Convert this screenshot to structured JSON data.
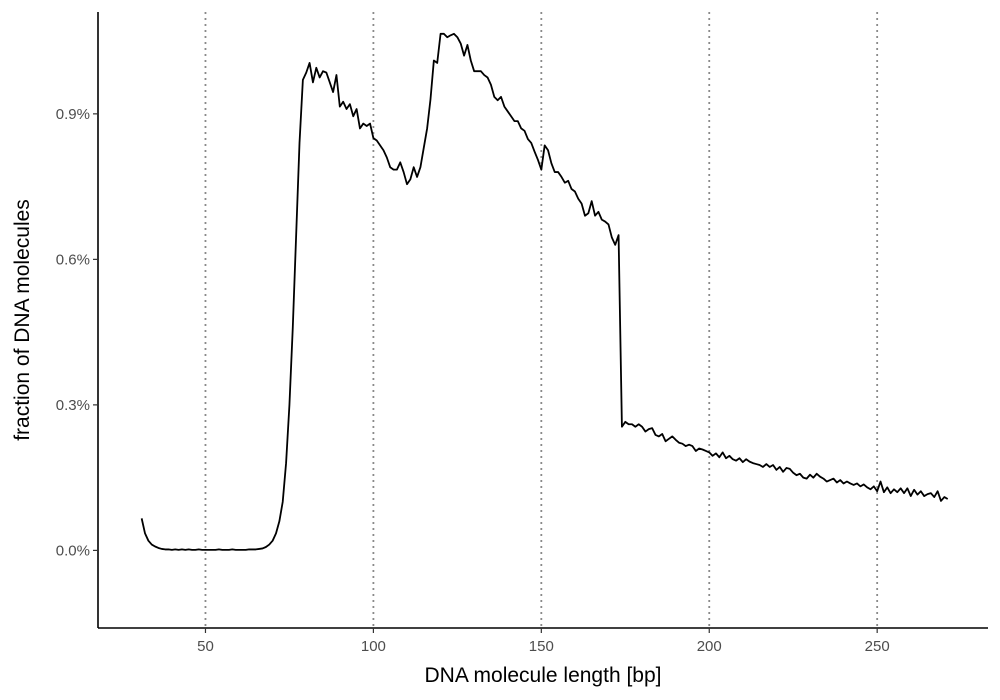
{
  "chart_data": {
    "type": "line",
    "xlabel": "DNA molecule length [bp]",
    "ylabel": "fraction of DNA molecules",
    "xlim": [
      18,
      283
    ],
    "ylim": [
      -0.16,
      1.11
    ],
    "x_ticks": [
      50,
      100,
      150,
      200,
      250
    ],
    "x_tick_labels": [
      "50",
      "100",
      "150",
      "200",
      "250"
    ],
    "y_ticks": [
      0.0,
      0.3,
      0.6,
      0.9
    ],
    "y_tick_labels": [
      "0.0%",
      "0.3%",
      "0.6%",
      "0.9%"
    ],
    "y_unit": "%",
    "vertical_reference_lines": [
      50,
      100,
      150,
      200,
      250
    ],
    "grid": false,
    "series": [
      {
        "x": [
          31,
          32,
          33,
          34,
          35,
          36,
          37,
          38,
          39,
          40,
          41,
          42,
          43,
          44,
          45,
          46,
          47,
          48,
          49,
          50,
          51,
          52,
          53,
          54,
          55,
          56,
          57,
          58,
          59,
          60,
          61,
          62,
          63,
          64,
          65,
          66,
          67,
          68,
          69,
          70,
          71,
          72,
          73,
          74,
          75,
          76,
          77,
          78,
          79,
          80,
          81,
          82,
          83,
          84,
          85,
          86,
          87,
          88,
          89,
          90,
          91,
          92,
          93,
          94,
          95,
          96,
          97,
          98,
          99,
          100,
          101,
          102,
          103,
          104,
          105,
          106,
          107,
          108,
          109,
          110,
          111,
          112,
          113,
          114,
          115,
          116,
          117,
          118,
          119,
          120,
          121,
          122,
          123,
          124,
          125,
          126,
          127,
          128,
          129,
          130,
          131,
          132,
          133,
          134,
          135,
          136,
          137,
          138,
          139,
          140,
          141,
          142,
          143,
          144,
          145,
          146,
          147,
          148,
          149,
          150,
          151,
          152,
          153,
          154,
          155,
          156,
          157,
          158,
          159,
          160,
          161,
          162,
          163,
          164,
          165,
          166,
          167,
          168,
          169,
          170,
          171,
          172,
          173,
          174,
          175,
          176,
          177,
          178,
          179,
          180,
          181,
          182,
          183,
          184,
          185,
          186,
          187,
          188,
          189,
          190,
          191,
          192,
          193,
          194,
          195,
          196,
          197,
          198,
          199,
          200,
          201,
          202,
          203,
          204,
          205,
          206,
          207,
          208,
          209,
          210,
          211,
          212,
          213,
          214,
          215,
          216,
          217,
          218,
          219,
          220,
          221,
          222,
          223,
          224,
          225,
          226,
          227,
          228,
          229,
          230,
          231,
          232,
          233,
          234,
          235,
          236,
          237,
          238,
          239,
          240,
          241,
          242,
          243,
          244,
          245,
          246,
          247,
          248,
          249,
          250,
          251,
          252,
          253,
          254,
          255,
          256,
          257,
          258,
          259,
          260,
          261,
          262,
          263,
          264,
          265,
          266,
          267,
          268,
          269,
          270,
          271
        ],
        "y": [
          0.066,
          0.035,
          0.02,
          0.012,
          0.008,
          0.005,
          0.003,
          0.002,
          0.002,
          0.001,
          0.002,
          0.001,
          0.002,
          0.001,
          0.002,
          0.001,
          0.001,
          0.002,
          0.001,
          0.001,
          0.001,
          0.001,
          0.001,
          0.002,
          0.001,
          0.001,
          0.001,
          0.002,
          0.001,
          0.001,
          0.001,
          0.001,
          0.002,
          0.002,
          0.002,
          0.003,
          0.004,
          0.007,
          0.012,
          0.02,
          0.035,
          0.06,
          0.1,
          0.18,
          0.3,
          0.46,
          0.65,
          0.84,
          0.97,
          0.985,
          1.005,
          0.965,
          0.995,
          0.975,
          0.988,
          0.985,
          0.965,
          0.945,
          0.98,
          0.915,
          0.925,
          0.91,
          0.92,
          0.895,
          0.91,
          0.87,
          0.88,
          0.875,
          0.88,
          0.85,
          0.845,
          0.835,
          0.825,
          0.81,
          0.79,
          0.785,
          0.785,
          0.8,
          0.78,
          0.755,
          0.765,
          0.79,
          0.77,
          0.79,
          0.83,
          0.87,
          0.93,
          1.01,
          1.005,
          1.065,
          1.065,
          1.058,
          1.062,
          1.065,
          1.058,
          1.045,
          1.02,
          1.042,
          1.01,
          0.988,
          0.988,
          0.988,
          0.98,
          0.975,
          0.96,
          0.935,
          0.928,
          0.935,
          0.915,
          0.905,
          0.895,
          0.885,
          0.885,
          0.87,
          0.865,
          0.848,
          0.84,
          0.822,
          0.805,
          0.785,
          0.835,
          0.825,
          0.798,
          0.78,
          0.78,
          0.77,
          0.758,
          0.762,
          0.745,
          0.74,
          0.725,
          0.715,
          0.69,
          0.695,
          0.72,
          0.69,
          0.698,
          0.682,
          0.678,
          0.672,
          0.645,
          0.63,
          0.65,
          0.255,
          0.265,
          0.26,
          0.26,
          0.255,
          0.26,
          0.255,
          0.245,
          0.25,
          0.252,
          0.238,
          0.235,
          0.24,
          0.225,
          0.23,
          0.235,
          0.228,
          0.222,
          0.22,
          0.215,
          0.218,
          0.215,
          0.205,
          0.21,
          0.208,
          0.205,
          0.202,
          0.195,
          0.2,
          0.192,
          0.202,
          0.19,
          0.195,
          0.188,
          0.185,
          0.19,
          0.182,
          0.188,
          0.183,
          0.18,
          0.178,
          0.176,
          0.172,
          0.178,
          0.172,
          0.176,
          0.166,
          0.172,
          0.162,
          0.17,
          0.168,
          0.16,
          0.155,
          0.158,
          0.15,
          0.148,
          0.156,
          0.15,
          0.158,
          0.152,
          0.148,
          0.142,
          0.145,
          0.148,
          0.14,
          0.145,
          0.138,
          0.142,
          0.138,
          0.135,
          0.138,
          0.132,
          0.136,
          0.13,
          0.126,
          0.132,
          0.122,
          0.142,
          0.12,
          0.13,
          0.118,
          0.126,
          0.12,
          0.128,
          0.118,
          0.128,
          0.112,
          0.125,
          0.115,
          0.122,
          0.112,
          0.116,
          0.118,
          0.11,
          0.122,
          0.102,
          0.11,
          0.106
        ]
      }
    ]
  }
}
